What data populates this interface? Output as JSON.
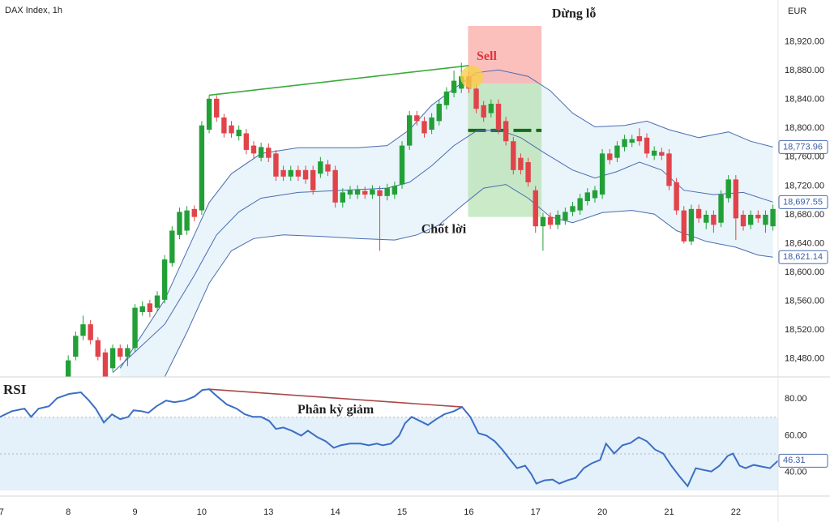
{
  "chart_data": [
    {
      "type": "candlestick",
      "title": "DAX Index, 1h",
      "currency": "EUR",
      "x": [
        9,
        10,
        11,
        12,
        13,
        14,
        15,
        16,
        17,
        18,
        19,
        20,
        21,
        22,
        23,
        24,
        25,
        26,
        27,
        28,
        29,
        30,
        31,
        32,
        33,
        34,
        35,
        36,
        37,
        38,
        39,
        40,
        41,
        42,
        43,
        44,
        45,
        46,
        47,
        48,
        49,
        50,
        51,
        52,
        53,
        54,
        55,
        56,
        57,
        58,
        59,
        60,
        61,
        62,
        63,
        64,
        65,
        66,
        67,
        68,
        69,
        70,
        71,
        72,
        73,
        74,
        75,
        76,
        77,
        78,
        79,
        80,
        81,
        82,
        83,
        84,
        85,
        86,
        87,
        88,
        89,
        90,
        91,
        92,
        93,
        94,
        95,
        96,
        97,
        98,
        99,
        100,
        101,
        102,
        103,
        104
      ],
      "open": [
        18455,
        18483,
        18512,
        18528,
        18506,
        18489,
        18467,
        18495,
        18483,
        18495,
        18545,
        18557,
        18551,
        18562,
        18613,
        18652,
        18658,
        18688,
        18686,
        18798,
        18841,
        18815,
        18804,
        18789,
        18793,
        18776,
        18759,
        18773,
        18765,
        18742,
        18733,
        18742,
        18742,
        18742,
        18737,
        18750,
        18742,
        18697,
        18708,
        18708,
        18713,
        18708,
        18714,
        18706,
        18708,
        18722,
        18776,
        18818,
        18810,
        18798,
        18810,
        18832,
        18849,
        18855,
        18872,
        18855,
        18832,
        18821,
        18834,
        18810,
        18782,
        18759,
        18753,
        18714,
        18664,
        18677,
        18666,
        18672,
        18684,
        18686,
        18699,
        18703,
        18708,
        18765,
        18759,
        18774,
        18780,
        18789,
        18787,
        18762,
        18767,
        18765,
        18725,
        18686,
        18643,
        18688,
        18669,
        18680,
        18669,
        18703,
        18729,
        18680,
        18666,
        18680,
        18666,
        18664
      ],
      "high": [
        18485,
        18518,
        18540,
        18534,
        18510,
        18494,
        18500,
        18500,
        18500,
        18556,
        18560,
        18562,
        18574,
        18624,
        18664,
        18690,
        18692,
        18693,
        18810,
        18846,
        18846,
        18820,
        18810,
        18804,
        18799,
        18782,
        18780,
        18779,
        18770,
        18748,
        18748,
        18748,
        18748,
        18748,
        18760,
        18756,
        18748,
        18717,
        18720,
        18721,
        18719,
        18721,
        18720,
        18723,
        18726,
        18782,
        18824,
        18824,
        18816,
        18821,
        18840,
        18857,
        18880,
        18891,
        18878,
        18861,
        18838,
        18840,
        18840,
        18816,
        18788,
        18765,
        18759,
        18720,
        18683,
        18683,
        18686,
        18690,
        18698,
        18709,
        18717,
        18720,
        18771,
        18771,
        18782,
        18791,
        18791,
        18800,
        18793,
        18775,
        18773,
        18771,
        18731,
        18692,
        18694,
        18694,
        18686,
        18686,
        18714,
        18735,
        18735,
        18686,
        18686,
        18686,
        18686,
        18694
      ],
      "low": [
        18452,
        18478,
        18506,
        18500,
        18478,
        18452,
        18462,
        18478,
        18470,
        18490,
        18540,
        18538,
        18546,
        18557,
        18608,
        18646,
        18652,
        18671,
        18680,
        18793,
        18809,
        18787,
        18787,
        18783,
        18764,
        18759,
        18754,
        18753,
        18727,
        18727,
        18727,
        18727,
        18723,
        18708,
        18731,
        18734,
        18690,
        18690,
        18702,
        18702,
        18702,
        18702,
        18630,
        18700,
        18702,
        18716,
        18770,
        18804,
        18787,
        18792,
        18804,
        18826,
        18843,
        18849,
        18849,
        18821,
        18809,
        18815,
        18792,
        18776,
        18736,
        18736,
        18719,
        18655,
        18630,
        18660,
        18660,
        18666,
        18678,
        18680,
        18693,
        18697,
        18702,
        18750,
        18753,
        18768,
        18774,
        18776,
        18759,
        18756,
        18756,
        18714,
        18680,
        18640,
        18638,
        18669,
        18660,
        18655,
        18663,
        18697,
        18645,
        18658,
        18660,
        18669,
        18655,
        18658
      ],
      "close": [
        18478,
        18512,
        18528,
        18506,
        18483,
        18455,
        18495,
        18483,
        18495,
        18551,
        18553,
        18545,
        18568,
        18618,
        18658,
        18684,
        18686,
        18677,
        18804,
        18841,
        18815,
        18793,
        18793,
        18798,
        18770,
        18765,
        18774,
        18759,
        18733,
        18733,
        18742,
        18733,
        18729,
        18714,
        18754,
        18740,
        18697,
        18711,
        18714,
        18715,
        18708,
        18715,
        18706,
        18717,
        18720,
        18776,
        18818,
        18810,
        18793,
        18815,
        18834,
        18851,
        18866,
        18872,
        18855,
        18827,
        18815,
        18834,
        18798,
        18782,
        18742,
        18742,
        18725,
        18664,
        18677,
        18666,
        18680,
        18684,
        18692,
        18703,
        18711,
        18714,
        18765,
        18756,
        18776,
        18785,
        18785,
        18782,
        18765,
        18769,
        18762,
        18720,
        18686,
        18643,
        18688,
        18675,
        18680,
        18666,
        18708,
        18729,
        18675,
        18664,
        18680,
        18675,
        18680,
        18688
      ],
      "up_color": "#22a037",
      "down_color": "#e0444a",
      "xlim": [
        -0.2,
        104.7
      ],
      "xticks": [
        {
          "value": 0,
          "label": "7"
        },
        {
          "value": 9,
          "label": "8"
        },
        {
          "value": 18,
          "label": "9"
        },
        {
          "value": 27,
          "label": "10"
        },
        {
          "value": 36,
          "label": "13"
        },
        {
          "value": 45,
          "label": "14"
        },
        {
          "value": 54,
          "label": "15"
        },
        {
          "value": 63,
          "label": "16"
        },
        {
          "value": 72,
          "label": "17"
        },
        {
          "value": 81,
          "label": "20"
        },
        {
          "value": 90,
          "label": "21"
        },
        {
          "value": 99,
          "label": "22"
        }
      ],
      "ylim": [
        18455,
        18978
      ],
      "yticks": [
        {
          "value": 18480,
          "label": "18,480.00"
        },
        {
          "value": 18520,
          "label": "18,520.00"
        },
        {
          "value": 18560,
          "label": "18,560.00"
        },
        {
          "value": 18600,
          "label": "18,600.00"
        },
        {
          "value": 18640,
          "label": "18,640.00"
        },
        {
          "value": 18680,
          "label": "18,680.00"
        },
        {
          "value": 18720,
          "label": "18,720.00"
        },
        {
          "value": 18760,
          "label": "18,760.00"
        },
        {
          "value": 18800,
          "label": "18,800.00"
        },
        {
          "value": 18840,
          "label": "18,840.00"
        },
        {
          "value": 18880,
          "label": "18,880.00"
        },
        {
          "value": 18920,
          "label": "18,920.00"
        }
      ],
      "bands": [
        {
          "x": [
            16,
            22,
            26,
            28,
            31,
            35,
            40,
            48,
            52,
            55,
            58,
            61,
            64,
            67,
            71,
            74,
            77,
            80,
            84,
            87,
            90,
            94,
            98,
            101,
            104
          ],
          "values": [
            18467,
            18562,
            18652,
            18697,
            18737,
            18765,
            18773,
            18773,
            18776,
            18798,
            18832,
            18855,
            18877,
            18881,
            18872,
            18852,
            18821,
            18802,
            18804,
            18810,
            18798,
            18787,
            18795,
            18782,
            18773.96
          ],
          "color": "#4a6cb0"
        },
        {
          "x": [
            15,
            22,
            26,
            29,
            32,
            35,
            40,
            46,
            52,
            55,
            58,
            61,
            64,
            67,
            70,
            73,
            77,
            80,
            83,
            86,
            89,
            92,
            96,
            100,
            104
          ],
          "values": [
            18461,
            18528,
            18596,
            18652,
            18684,
            18703,
            18711,
            18714,
            18717,
            18725,
            18748,
            18776,
            18796,
            18798,
            18787,
            18767,
            18742,
            18731,
            18740,
            18753,
            18742,
            18714,
            18708,
            18711,
            18697.55
          ],
          "color": "#4a6cb0"
        },
        {
          "x": [
            22,
            25,
            28,
            31,
            34,
            38,
            43,
            48,
            53,
            56,
            59,
            62,
            65,
            68,
            71,
            74,
            77,
            81,
            85,
            88,
            91,
            95,
            99,
            102,
            104
          ],
          "values": [
            18455,
            18517,
            18585,
            18630,
            18647,
            18652,
            18650,
            18647,
            18645,
            18652,
            18666,
            18692,
            18717,
            18722,
            18703,
            18677,
            18669,
            18683,
            18686,
            18681,
            18658,
            18643,
            18635,
            18624,
            18621.14
          ],
          "color": "#4a6cb0"
        }
      ],
      "band_fill": "#e9f4fb",
      "price_tags": [
        {
          "value": 18773.96,
          "label": "18,773.96"
        },
        {
          "value": 18697.55,
          "label": "18,697.55"
        },
        {
          "value": 18621.14,
          "label": "18,621.14"
        }
      ],
      "trendline": {
        "x": [
          28,
          63
        ],
        "values": [
          18846,
          18887
        ],
        "color": "#3aaa3a"
      },
      "position": {
        "x": [
          62.9,
          72.8
        ],
        "stop": 18942,
        "entry": 18862,
        "target": 18677,
        "mid": 18797,
        "stop_label": "Dừng lỗ",
        "target_label": "Chốt lời"
      },
      "signal": {
        "x": 63.4,
        "value": 18871,
        "label": "Sell"
      }
    },
    {
      "type": "line",
      "title": "RSI",
      "x": [
        -0.2,
        1.4,
        3.1,
        4.0,
        5.0,
        6.4,
        7.5,
        9.1,
        10.7,
        11.8,
        12.7,
        13.8,
        14.9,
        16.0,
        17.1,
        17.8,
        18.9,
        19.8,
        20.9,
        22.2,
        23.3,
        24.7,
        26.0,
        27.1,
        28.0,
        29.1,
        30.4,
        31.7,
        32.8,
        33.9,
        35.0,
        36.1,
        37.0,
        38.0,
        39.1,
        40.4,
        41.3,
        42.6,
        43.7,
        44.8,
        45.7,
        47.0,
        48.4,
        49.5,
        50.6,
        51.4,
        52.5,
        53.6,
        54.4,
        55.3,
        56.4,
        57.5,
        58.6,
        59.7,
        61.0,
        62.1,
        63.2,
        64.3,
        65.4,
        66.5,
        67.5,
        68.6,
        69.5,
        70.6,
        71.4,
        72.1,
        73.2,
        74.3,
        75.2,
        76.3,
        77.4,
        78.5,
        79.6,
        80.7,
        81.5,
        82.6,
        83.7,
        84.8,
        85.9,
        87.0,
        88.1,
        89.2,
        90.3,
        91.4,
        92.5,
        93.6,
        94.6,
        95.7,
        96.8,
        97.9,
        98.6,
        99.5,
        100.3,
        101.4,
        102.5,
        103.6,
        104.7
      ],
      "series": [
        {
          "name": "RSI",
          "color": "#3a6fc4",
          "values": [
            70.2,
            73.3,
            74.7,
            70.2,
            74.7,
            76.0,
            80.4,
            82.7,
            83.6,
            79.1,
            74.7,
            67.1,
            71.6,
            68.9,
            70.2,
            73.8,
            73.3,
            72.4,
            76.0,
            79.1,
            78.2,
            79.1,
            81.3,
            84.9,
            85.3,
            81.3,
            76.9,
            74.7,
            71.6,
            70.2,
            70.2,
            68.0,
            63.6,
            64.4,
            62.7,
            60.0,
            62.7,
            59.1,
            56.9,
            53.3,
            54.7,
            55.6,
            55.6,
            54.7,
            55.6,
            54.7,
            55.6,
            60.0,
            66.7,
            70.2,
            68.0,
            65.8,
            68.9,
            71.6,
            73.3,
            75.6,
            70.2,
            61.3,
            60.0,
            56.9,
            52.4,
            46.7,
            42.2,
            43.6,
            39.1,
            33.8,
            35.6,
            36.0,
            33.8,
            35.6,
            36.9,
            42.2,
            44.9,
            46.7,
            55.6,
            50.2,
            54.7,
            56.0,
            59.1,
            56.9,
            52.4,
            50.2,
            43.6,
            37.8,
            32.4,
            42.2,
            41.3,
            40.4,
            43.6,
            48.9,
            50.2,
            43.6,
            42.2,
            44.0,
            43.1,
            42.2,
            46.31
          ]
        }
      ],
      "xlim": [
        -0.2,
        104.7
      ],
      "ylim": [
        27,
        92
      ],
      "yticks": [
        {
          "value": 40,
          "label": "40.00"
        },
        {
          "value": 60,
          "label": "60.00"
        },
        {
          "value": 80,
          "label": "80.00"
        }
      ],
      "band": [
        30,
        70
      ],
      "band_fill": "#e4f0fa",
      "levels": [
        70,
        50
      ],
      "price_tags": [
        {
          "value": 46.31,
          "label": "46.31"
        }
      ],
      "trendline": {
        "x": [
          28,
          62.1
        ],
        "values": [
          85.3,
          75.6
        ],
        "color": "#a84848",
        "label": "Phân kỳ giảm"
      }
    }
  ]
}
